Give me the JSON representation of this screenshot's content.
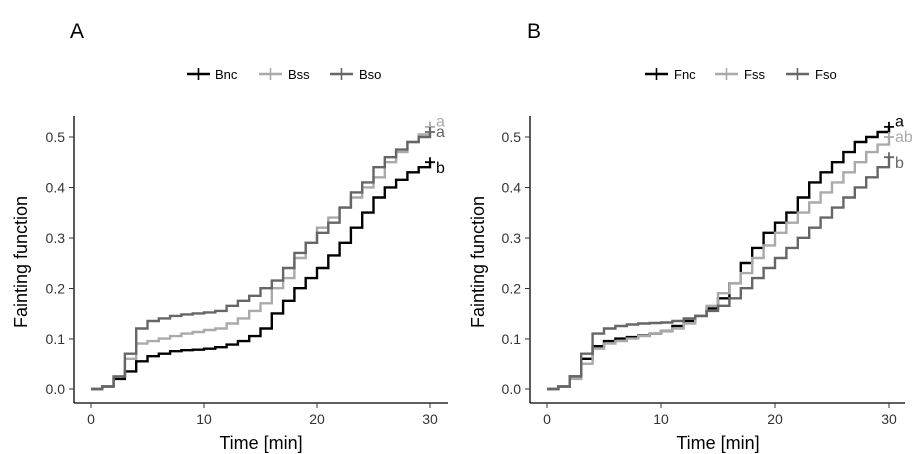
{
  "chart_data": [
    {
      "type": "line",
      "step": true,
      "panel": "A",
      "xlabel": "Time [min]",
      "ylabel": "Fainting function",
      "xlim": [
        0,
        30
      ],
      "ylim": [
        0,
        0.52
      ],
      "x_ticks": [
        "0",
        "10",
        "20",
        "30"
      ],
      "y_ticks": [
        "0.0",
        "0.1",
        "0.2",
        "0.3",
        "0.4",
        "0.5"
      ],
      "legend_position": "top",
      "series": [
        {
          "name": "Bnc",
          "color": "#000000",
          "end_label": "b",
          "x": [
            0,
            1,
            2,
            3,
            4,
            5,
            6,
            7,
            8,
            9,
            10,
            11,
            12,
            13,
            14,
            15,
            16,
            17,
            18,
            19,
            20,
            21,
            22,
            23,
            24,
            25,
            26,
            27,
            28,
            29,
            30
          ],
          "y": [
            0,
            0.005,
            0.02,
            0.035,
            0.055,
            0.065,
            0.07,
            0.075,
            0.077,
            0.078,
            0.08,
            0.083,
            0.088,
            0.095,
            0.105,
            0.12,
            0.15,
            0.175,
            0.2,
            0.22,
            0.24,
            0.265,
            0.29,
            0.32,
            0.35,
            0.38,
            0.4,
            0.415,
            0.43,
            0.44,
            0.45
          ]
        },
        {
          "name": "Bss",
          "color": "#aaaaaa",
          "end_label": "a",
          "x": [
            0,
            1,
            2,
            3,
            4,
            5,
            6,
            7,
            8,
            9,
            10,
            11,
            12,
            13,
            14,
            15,
            16,
            17,
            18,
            19,
            20,
            21,
            22,
            23,
            24,
            25,
            26,
            27,
            28,
            29,
            30
          ],
          "y": [
            0,
            0.005,
            0.025,
            0.06,
            0.09,
            0.095,
            0.1,
            0.105,
            0.11,
            0.113,
            0.117,
            0.12,
            0.13,
            0.14,
            0.155,
            0.17,
            0.2,
            0.22,
            0.26,
            0.29,
            0.32,
            0.34,
            0.36,
            0.38,
            0.4,
            0.42,
            0.45,
            0.47,
            0.49,
            0.505,
            0.52
          ]
        },
        {
          "name": "Bso",
          "color": "#666666",
          "end_label": "a",
          "x": [
            0,
            1,
            2,
            3,
            4,
            5,
            6,
            7,
            8,
            9,
            10,
            11,
            12,
            13,
            14,
            15,
            16,
            17,
            18,
            19,
            20,
            21,
            22,
            23,
            24,
            25,
            26,
            27,
            28,
            29,
            30
          ],
          "y": [
            0,
            0.005,
            0.025,
            0.07,
            0.12,
            0.135,
            0.14,
            0.145,
            0.148,
            0.15,
            0.152,
            0.155,
            0.165,
            0.175,
            0.185,
            0.2,
            0.215,
            0.24,
            0.27,
            0.29,
            0.31,
            0.33,
            0.36,
            0.39,
            0.41,
            0.44,
            0.46,
            0.475,
            0.49,
            0.5,
            0.51
          ]
        }
      ]
    },
    {
      "type": "line",
      "step": true,
      "panel": "B",
      "xlabel": "Time [min]",
      "ylabel": "Fainting function",
      "xlim": [
        0,
        30
      ],
      "ylim": [
        0,
        0.52
      ],
      "x_ticks": [
        "0",
        "10",
        "20",
        "30"
      ],
      "y_ticks": [
        "0.0",
        "0.1",
        "0.2",
        "0.3",
        "0.4",
        "0.5"
      ],
      "legend_position": "top",
      "series": [
        {
          "name": "Fnc",
          "color": "#000000",
          "end_label": "a",
          "x": [
            0,
            1,
            2,
            3,
            4,
            5,
            6,
            7,
            8,
            9,
            10,
            11,
            12,
            13,
            14,
            15,
            16,
            17,
            18,
            19,
            20,
            21,
            22,
            23,
            24,
            25,
            26,
            27,
            28,
            29,
            30
          ],
          "y": [
            0,
            0.005,
            0.025,
            0.06,
            0.085,
            0.095,
            0.1,
            0.103,
            0.106,
            0.11,
            0.115,
            0.125,
            0.135,
            0.145,
            0.16,
            0.18,
            0.21,
            0.25,
            0.28,
            0.31,
            0.33,
            0.35,
            0.38,
            0.41,
            0.43,
            0.45,
            0.47,
            0.49,
            0.5,
            0.51,
            0.52
          ]
        },
        {
          "name": "Fss",
          "color": "#aaaaaa",
          "end_label": "ab",
          "x": [
            0,
            1,
            2,
            3,
            4,
            5,
            6,
            7,
            8,
            9,
            10,
            11,
            12,
            13,
            14,
            15,
            16,
            17,
            18,
            19,
            20,
            21,
            22,
            23,
            24,
            25,
            26,
            27,
            28,
            29,
            30
          ],
          "y": [
            0,
            0.005,
            0.02,
            0.05,
            0.08,
            0.09,
            0.095,
            0.1,
            0.105,
            0.11,
            0.115,
            0.12,
            0.13,
            0.145,
            0.165,
            0.19,
            0.21,
            0.23,
            0.26,
            0.285,
            0.31,
            0.33,
            0.35,
            0.37,
            0.39,
            0.41,
            0.43,
            0.45,
            0.47,
            0.485,
            0.5
          ]
        },
        {
          "name": "Fso",
          "color": "#666666",
          "end_label": "b",
          "x": [
            0,
            1,
            2,
            3,
            4,
            5,
            6,
            7,
            8,
            9,
            10,
            11,
            12,
            13,
            14,
            15,
            16,
            17,
            18,
            19,
            20,
            21,
            22,
            23,
            24,
            25,
            26,
            27,
            28,
            29,
            30
          ],
          "y": [
            0,
            0.005,
            0.025,
            0.07,
            0.11,
            0.12,
            0.125,
            0.128,
            0.13,
            0.131,
            0.132,
            0.135,
            0.14,
            0.145,
            0.155,
            0.165,
            0.18,
            0.2,
            0.22,
            0.24,
            0.26,
            0.28,
            0.3,
            0.32,
            0.34,
            0.36,
            0.38,
            0.4,
            0.42,
            0.44,
            0.46
          ]
        }
      ]
    }
  ]
}
